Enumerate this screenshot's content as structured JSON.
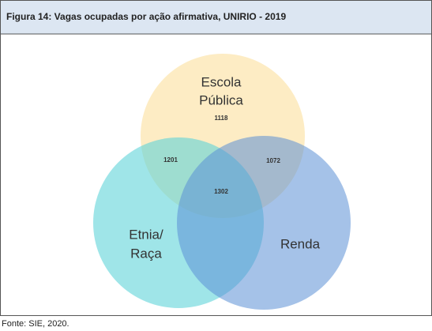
{
  "header": {
    "title": "Figura 14: Vagas ocupadas por ação afirmativa, UNIRIO - 2019"
  },
  "sets": [
    {
      "label_lines": [
        "Escola",
        "Pública"
      ],
      "only": 1118
    },
    {
      "label_lines": [
        "Etnia/",
        "Raça"
      ]
    },
    {
      "label_lines": [
        "Renda"
      ]
    }
  ],
  "intersections": {
    "escola_etnia": 1201,
    "escola_renda": 1072,
    "all": 1302
  },
  "footer": {
    "source": "Fonte: SIE, 2020."
  }
}
